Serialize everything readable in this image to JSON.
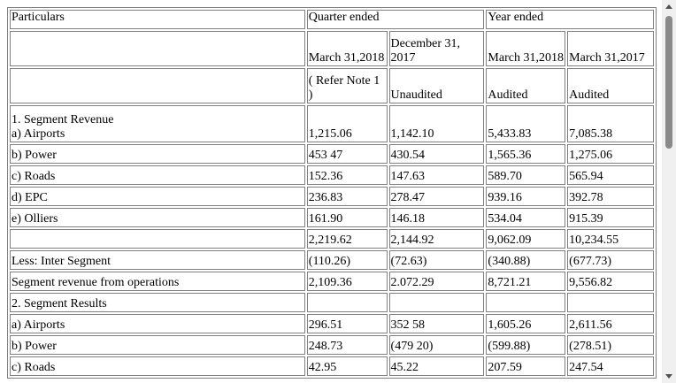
{
  "header": {
    "particulars": "Particulars",
    "quarter_ended": "Quarter ended",
    "year_ended": "Year ended",
    "dates": [
      "March 31,2018",
      "December 31, 2017",
      "March 31,2018",
      "March 31,2017"
    ],
    "refer_note": "( Refer Note 1 )",
    "status": [
      "Unaudited",
      "Audited",
      "Audited"
    ]
  },
  "rows": [
    {
      "label": [
        "1. Segment Revenue",
        "a) Airports"
      ],
      "values": [
        "1,215.06",
        "1,142.10",
        "5,433.83",
        "7,085.38"
      ]
    },
    {
      "label": [
        "b) Power"
      ],
      "values": [
        "453 47",
        "430.54",
        "1,565.36",
        "1,275.06"
      ]
    },
    {
      "label": [
        "c) Roads"
      ],
      "values": [
        "152.36",
        "147.63",
        "589.70",
        "565.94"
      ]
    },
    {
      "label": [
        "d) EPC"
      ],
      "values": [
        "236.83",
        "278.47",
        "939.16",
        "392.78"
      ]
    },
    {
      "label": [
        "e) Olliers"
      ],
      "values": [
        "161.90",
        "146.18",
        "534.04",
        "915.39"
      ]
    },
    {
      "label": [
        ""
      ],
      "values": [
        "2,219.62",
        "2,144.92",
        "9,062.09",
        "10,234.55"
      ]
    },
    {
      "label": [
        "Less: Inter Segment"
      ],
      "values": [
        "(110.26)",
        "(72.63)",
        "(340.88)",
        "(677.73)"
      ]
    },
    {
      "label": [
        "Segment revenue from operations"
      ],
      "values": [
        "2,109.36",
        "2.072.29",
        "8,721.21",
        "9,556.82"
      ]
    },
    {
      "label": [
        "2. Segment Results"
      ],
      "values": [
        "",
        "",
        "",
        ""
      ]
    },
    {
      "label": [
        "a) Airports"
      ],
      "values": [
        "296.51",
        "352 58",
        "1,605.26",
        "2,611.56"
      ]
    },
    {
      "label": [
        "b) Power"
      ],
      "values": [
        "248.73",
        "(479 20)",
        "(599.88)",
        "(278.51)"
      ]
    },
    {
      "label": [
        "c) Roads"
      ],
      "values": [
        "42.95",
        "45.22",
        "207.59",
        "247.54"
      ]
    }
  ]
}
